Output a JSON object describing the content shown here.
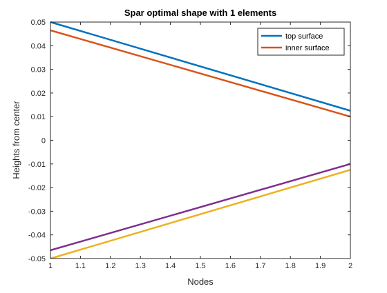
{
  "chart_data": {
    "type": "line",
    "title": "Spar optimal shape with 1 elements",
    "xlabel": "Nodes",
    "ylabel": "Heights from center",
    "xlim": [
      1,
      2
    ],
    "ylim": [
      -0.05,
      0.05
    ],
    "x_ticks": [
      1,
      1.1,
      1.2,
      1.3,
      1.4,
      1.5,
      1.6,
      1.7,
      1.8,
      1.9,
      2
    ],
    "x_tick_labels": [
      "1",
      "1.1",
      "1.2",
      "1.3",
      "1.4",
      "1.5",
      "1.6",
      "1.7",
      "1.8",
      "1.9",
      "2"
    ],
    "y_ticks": [
      0.05,
      0.04,
      0.03,
      0.02,
      0.01,
      0,
      -0.01,
      -0.02,
      -0.03,
      -0.04,
      -0.05
    ],
    "y_tick_labels": [
      "0.05",
      "0.04",
      "0.03",
      "0.02",
      "0.01",
      "0",
      "-0.01",
      "-0.02",
      "-0.03",
      "-0.04",
      "-0.05"
    ],
    "grid": false,
    "legend_position": "top-right",
    "series": [
      {
        "name": "top surface",
        "x": [
          1,
          2
        ],
        "y": [
          0.05,
          0.0125
        ],
        "color": "#0072BD"
      },
      {
        "name": "inner surface",
        "x": [
          1,
          2
        ],
        "y": [
          0.0465,
          0.01
        ],
        "color": "#D95319"
      },
      {
        "x": [
          1,
          2
        ],
        "y": [
          -0.05,
          -0.0125
        ],
        "color": "#EDB120"
      },
      {
        "x": [
          1,
          2
        ],
        "y": [
          -0.0465,
          -0.01
        ],
        "color": "#7E2F8E"
      }
    ]
  }
}
